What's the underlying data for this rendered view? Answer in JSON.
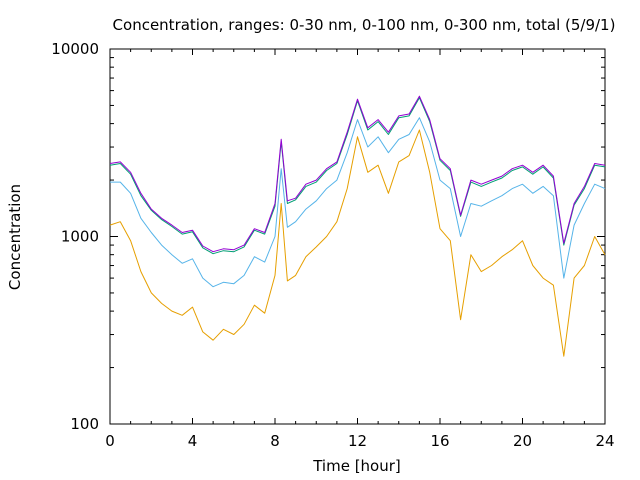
{
  "chart_data": {
    "type": "line",
    "title": "Concentration, ranges: 0-30 nm, 0-100 nm, 0-300 nm, total (5/9/1)",
    "xlabel": "Time [hour]",
    "ylabel": "Concentration",
    "x_ticks": [
      "0",
      "4",
      "8",
      "12",
      "16",
      "20",
      "24"
    ],
    "y_ticks": [
      "100",
      "1000",
      "10000"
    ],
    "xlim": [
      0,
      24
    ],
    "ylim": [
      100,
      10000
    ],
    "y_scale": "log",
    "grid": false,
    "legend": "none",
    "x": [
      0,
      0.5,
      1,
      1.5,
      2,
      2.5,
      3,
      3.5,
      4,
      4.5,
      5,
      5.5,
      6,
      6.5,
      7,
      7.5,
      8,
      8.3,
      8.6,
      9,
      9.5,
      10,
      10.5,
      11,
      11.5,
      12,
      12.5,
      13,
      13.5,
      14,
      14.5,
      15,
      15.5,
      16,
      16.5,
      17,
      17.5,
      18,
      18.5,
      19,
      19.5,
      20,
      20.5,
      21,
      21.5,
      22,
      22.5,
      23,
      23.5,
      24
    ],
    "series": [
      {
        "color": "#9400d3",
        "values": [
          2450,
          2500,
          2200,
          1700,
          1400,
          1250,
          1150,
          1050,
          1080,
          890,
          830,
          860,
          850,
          900,
          1100,
          1050,
          1500,
          3300,
          1550,
          1600,
          1900,
          2000,
          2300,
          2500,
          3600,
          5400,
          3800,
          4200,
          3600,
          4400,
          4500,
          5600,
          4200,
          2600,
          2300,
          1300,
          2000,
          1900,
          2000,
          2100,
          2300,
          2400,
          2200,
          2400,
          2100,
          920,
          1500,
          1850,
          2450,
          2400
        ]
      },
      {
        "color": "#009e73",
        "values": [
          2400,
          2450,
          2150,
          1650,
          1380,
          1230,
          1130,
          1030,
          1060,
          870,
          810,
          840,
          830,
          880,
          1080,
          1030,
          1450,
          3200,
          1500,
          1570,
          1850,
          1950,
          2250,
          2450,
          3500,
          5300,
          3700,
          4100,
          3500,
          4300,
          4400,
          5500,
          4100,
          2550,
          2250,
          1280,
          1950,
          1850,
          1950,
          2050,
          2250,
          2350,
          2150,
          2350,
          2050,
          900,
          1470,
          1800,
          2400,
          2350
        ]
      },
      {
        "color": "#56b4e9",
        "values": [
          1950,
          1950,
          1700,
          1250,
          1050,
          900,
          800,
          720,
          760,
          600,
          540,
          570,
          560,
          620,
          780,
          730,
          1000,
          2300,
          1120,
          1200,
          1400,
          1550,
          1800,
          2000,
          2800,
          4200,
          3000,
          3400,
          2800,
          3300,
          3500,
          4300,
          3200,
          2000,
          1800,
          1000,
          1500,
          1450,
          1550,
          1650,
          1800,
          1900,
          1700,
          1850,
          1650,
          600,
          1150,
          1500,
          1900,
          1800
        ]
      },
      {
        "color": "#e69f00",
        "values": [
          1150,
          1200,
          950,
          650,
          500,
          440,
          400,
          380,
          420,
          310,
          280,
          320,
          300,
          340,
          430,
          390,
          620,
          1500,
          580,
          620,
          780,
          880,
          1000,
          1200,
          1800,
          3400,
          2200,
          2400,
          1700,
          2500,
          2700,
          3700,
          2200,
          1100,
          950,
          360,
          800,
          650,
          700,
          780,
          850,
          950,
          700,
          600,
          550,
          230,
          600,
          700,
          1000,
          800
        ]
      }
    ]
  }
}
